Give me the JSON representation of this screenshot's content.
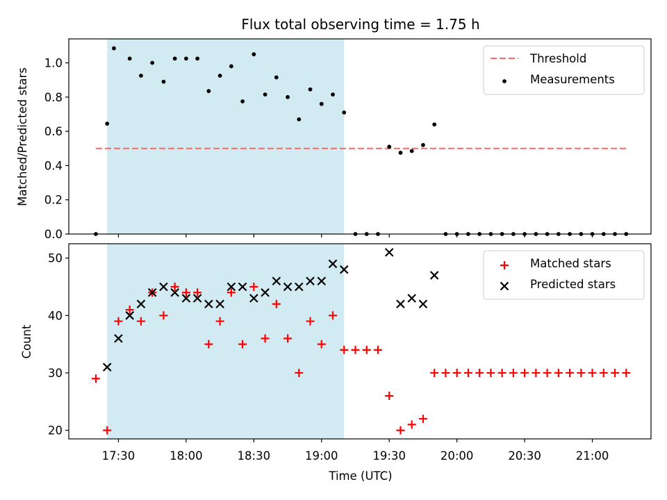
{
  "chart_data": {
    "title": "Flux total observing time = 1.75 h",
    "xlabel": "Time (UTC)",
    "x_tick_labels": [
      "17:30",
      "18:00",
      "18:30",
      "19:00",
      "19:30",
      "20:00",
      "20:30",
      "21:00"
    ],
    "x_ticks": [
      "17:30",
      "18:00",
      "18:30",
      "19:00",
      "19:30",
      "20:00",
      "20:30",
      "21:00"
    ],
    "xlim": [
      "17:08",
      "21:26"
    ],
    "highlight_span": {
      "start": "17:25",
      "end": "19:10",
      "color": "#add8e6"
    },
    "panels": [
      {
        "type": "scatter",
        "ylabel": "Matched/Predicted stars",
        "ylim": [
          0,
          1.14
        ],
        "y_ticks": [
          0.0,
          0.2,
          0.4,
          0.6,
          0.8,
          1.0
        ],
        "y_tick_labels": [
          "0.0",
          "0.2",
          "0.4",
          "0.6",
          "0.8",
          "1.0"
        ],
        "grid": false,
        "legend_position": "upper right",
        "threshold": {
          "name": "Threshold",
          "value": 0.5,
          "x_start": "17:20",
          "x_end": "21:15",
          "color": "#ff6666",
          "style": "dashed"
        },
        "series": [
          {
            "name": "Measurements",
            "marker": "dot",
            "color": "#000000",
            "points": [
              [
                "17:20",
                0.0
              ],
              [
                "17:25",
                0.645
              ],
              [
                "17:28",
                1.085
              ],
              [
                "17:35",
                1.025
              ],
              [
                "17:40",
                0.925
              ],
              [
                "17:45",
                1.0
              ],
              [
                "17:50",
                0.89
              ],
              [
                "17:55",
                1.025
              ],
              [
                "18:00",
                1.025
              ],
              [
                "18:05",
                1.025
              ],
              [
                "18:10",
                0.835
              ],
              [
                "18:15",
                0.925
              ],
              [
                "18:20",
                0.98
              ],
              [
                "18:25",
                0.775
              ],
              [
                "18:30",
                1.05
              ],
              [
                "18:35",
                0.815
              ],
              [
                "18:40",
                0.915
              ],
              [
                "18:45",
                0.8
              ],
              [
                "18:50",
                0.67
              ],
              [
                "18:55",
                0.845
              ],
              [
                "19:00",
                0.76
              ],
              [
                "19:05",
                0.815
              ],
              [
                "19:10",
                0.71
              ],
              [
                "19:15",
                0.0
              ],
              [
                "19:20",
                0.0
              ],
              [
                "19:25",
                0.0
              ],
              [
                "19:30",
                0.51
              ],
              [
                "19:35",
                0.475
              ],
              [
                "19:40",
                0.485
              ],
              [
                "19:45",
                0.52
              ],
              [
                "19:50",
                0.64
              ],
              [
                "19:55",
                0.0
              ],
              [
                "20:00",
                0.0
              ],
              [
                "20:05",
                0.0
              ],
              [
                "20:10",
                0.0
              ],
              [
                "20:15",
                0.0
              ],
              [
                "20:20",
                0.0
              ],
              [
                "20:25",
                0.0
              ],
              [
                "20:30",
                0.0
              ],
              [
                "20:35",
                0.0
              ],
              [
                "20:40",
                0.0
              ],
              [
                "20:45",
                0.0
              ],
              [
                "20:50",
                0.0
              ],
              [
                "20:55",
                0.0
              ],
              [
                "21:00",
                0.0
              ],
              [
                "21:05",
                0.0
              ],
              [
                "21:10",
                0.0
              ],
              [
                "21:15",
                0.0
              ]
            ]
          }
        ]
      },
      {
        "type": "scatter",
        "ylabel": "Count",
        "ylim": [
          18.5,
          52.5
        ],
        "y_ticks": [
          20,
          30,
          40,
          50
        ],
        "y_tick_labels": [
          "20",
          "30",
          "40",
          "50"
        ],
        "grid": false,
        "legend_position": "upper right",
        "series": [
          {
            "name": "Matched stars",
            "marker": "plus",
            "color": "#ff0000",
            "points": [
              [
                "17:20",
                29
              ],
              [
                "17:25",
                20
              ],
              [
                "17:30",
                39
              ],
              [
                "17:35",
                41
              ],
              [
                "17:40",
                39
              ],
              [
                "17:45",
                44
              ],
              [
                "17:50",
                40
              ],
              [
                "17:55",
                45
              ],
              [
                "18:00",
                44
              ],
              [
                "18:05",
                44
              ],
              [
                "18:10",
                35
              ],
              [
                "18:15",
                39
              ],
              [
                "18:20",
                44
              ],
              [
                "18:25",
                35
              ],
              [
                "18:30",
                45
              ],
              [
                "18:35",
                36
              ],
              [
                "18:40",
                42
              ],
              [
                "18:45",
                36
              ],
              [
                "18:50",
                30
              ],
              [
                "18:55",
                39
              ],
              [
                "19:00",
                35
              ],
              [
                "19:05",
                40
              ],
              [
                "19:10",
                34
              ],
              [
                "19:15",
                34
              ],
              [
                "19:20",
                34
              ],
              [
                "19:25",
                34
              ],
              [
                "19:30",
                26
              ],
              [
                "19:35",
                20
              ],
              [
                "19:40",
                21
              ],
              [
                "19:45",
                22
              ],
              [
                "19:50",
                30
              ],
              [
                "19:55",
                30
              ],
              [
                "20:00",
                30
              ],
              [
                "20:05",
                30
              ],
              [
                "20:10",
                30
              ],
              [
                "20:15",
                30
              ],
              [
                "20:20",
                30
              ],
              [
                "20:25",
                30
              ],
              [
                "20:30",
                30
              ],
              [
                "20:35",
                30
              ],
              [
                "20:40",
                30
              ],
              [
                "20:45",
                30
              ],
              [
                "20:50",
                30
              ],
              [
                "20:55",
                30
              ],
              [
                "21:00",
                30
              ],
              [
                "21:05",
                30
              ],
              [
                "21:10",
                30
              ],
              [
                "21:15",
                30
              ]
            ]
          },
          {
            "name": "Predicted stars",
            "marker": "x",
            "color": "#000000",
            "points": [
              [
                "17:25",
                31
              ],
              [
                "17:30",
                36
              ],
              [
                "17:35",
                40
              ],
              [
                "17:40",
                42
              ],
              [
                "17:45",
                44
              ],
              [
                "17:50",
                45
              ],
              [
                "17:55",
                44
              ],
              [
                "18:00",
                43
              ],
              [
                "18:05",
                43
              ],
              [
                "18:10",
                42
              ],
              [
                "18:15",
                42
              ],
              [
                "18:20",
                45
              ],
              [
                "18:25",
                45
              ],
              [
                "18:30",
                43
              ],
              [
                "18:35",
                44
              ],
              [
                "18:40",
                46
              ],
              [
                "18:45",
                45
              ],
              [
                "18:50",
                45
              ],
              [
                "18:55",
                46
              ],
              [
                "19:00",
                46
              ],
              [
                "19:05",
                49
              ],
              [
                "19:10",
                48
              ],
              [
                "19:30",
                51
              ],
              [
                "19:35",
                42
              ],
              [
                "19:40",
                43
              ],
              [
                "19:45",
                42
              ],
              [
                "19:50",
                47
              ]
            ]
          }
        ]
      }
    ]
  }
}
